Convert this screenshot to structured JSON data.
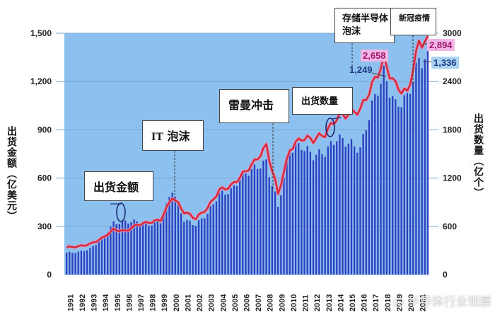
{
  "chart_data": {
    "type": "bar",
    "title": "",
    "xlabel": "",
    "ylabel": "出货金额（亿美元）",
    "y2label": "出货数量（亿个）",
    "ylim": [
      0,
      1500
    ],
    "y2lim": [
      0,
      3000
    ],
    "yticks": [
      "0",
      "300",
      "600",
      "900",
      "1,200",
      "1,500"
    ],
    "y2ticks": [
      "0",
      "600",
      "1200",
      "1800",
      "2400",
      "3000"
    ],
    "grid": true,
    "legend_position": "none",
    "categories": [
      "1991",
      "1992",
      "1993",
      "1994",
      "1995",
      "1996",
      "1997",
      "1998",
      "1999",
      "2000",
      "2001",
      "2002",
      "2003",
      "2004",
      "2005",
      "2006",
      "2007",
      "2008",
      "2009",
      "2010",
      "2011",
      "2012",
      "2013",
      "2014",
      "2015",
      "2016",
      "2017",
      "2018",
      "2019",
      "2020",
      "2021"
    ],
    "series": [
      {
        "name": "出货金额",
        "type": "bar",
        "axis": "left",
        "unit": "亿美元",
        "color": "#2f3fbf",
        "values": [
          135,
          140,
          160,
          220,
          320,
          330,
          330,
          310,
          330,
          530,
          340,
          310,
          380,
          500,
          520,
          620,
          660,
          700,
          420,
          780,
          800,
          740,
          760,
          850,
          820,
          780,
          1050,
          1249,
          1050,
          1100,
          1336
        ]
      },
      {
        "name": "出货数量",
        "type": "line",
        "axis": "right",
        "unit": "亿个",
        "color": "#d8283a",
        "values": [
          340,
          350,
          380,
          450,
          560,
          540,
          620,
          650,
          680,
          970,
          780,
          700,
          830,
          1050,
          1100,
          1250,
          1400,
          1600,
          1000,
          1560,
          1700,
          1680,
          1750,
          1950,
          2000,
          2050,
          2350,
          2658,
          2350,
          2250,
          2894
        ]
      }
    ],
    "annotations": [
      {
        "label": "出货金额",
        "target": "bars"
      },
      {
        "label": "IT 泡沫",
        "x": "2000"
      },
      {
        "label": "雷曼冲击",
        "x": "2009"
      },
      {
        "label": "出货数量",
        "target": "line"
      },
      {
        "label": "存储半导体泡沫",
        "x": "2018"
      },
      {
        "label": "新冠疫情",
        "x": "2020"
      }
    ],
    "data_labels": [
      {
        "series": "出货金额",
        "x": "2018",
        "value": "1,249"
      },
      {
        "series": "出货数量",
        "x": "2018",
        "value": "2,658"
      },
      {
        "series": "出货金额",
        "x": "2021",
        "value": "1,336"
      },
      {
        "series": "出货数量",
        "x": "2021",
        "value": "2,894"
      }
    ]
  },
  "labels": {
    "left_axis": "出货金额（亿美元）",
    "right_axis": "出货数量（亿个）",
    "anno_amount": "出货金额",
    "anno_it_line1": "IT",
    "anno_it_line2": "泡沫",
    "anno_lehman": "雷曼冲击",
    "anno_qty": "出货数量",
    "anno_memory_line1": "存储半导体",
    "anno_memory_line2": "泡沫",
    "anno_covid": "新冠疫情",
    "val_2658": "2,658",
    "val_1249": "1,249",
    "val_2894": "2,894",
    "val_1336": "1,336",
    "watermark": "半导体行业观察"
  },
  "colors": {
    "plot_bg": "#8cc0ef",
    "bar": "#2f3fbf",
    "line": "#d8283a",
    "line_glow": "#f08fb0",
    "pink_label_bg": "#f2b6e4",
    "blue_label_bg": "#a9d2f3"
  }
}
